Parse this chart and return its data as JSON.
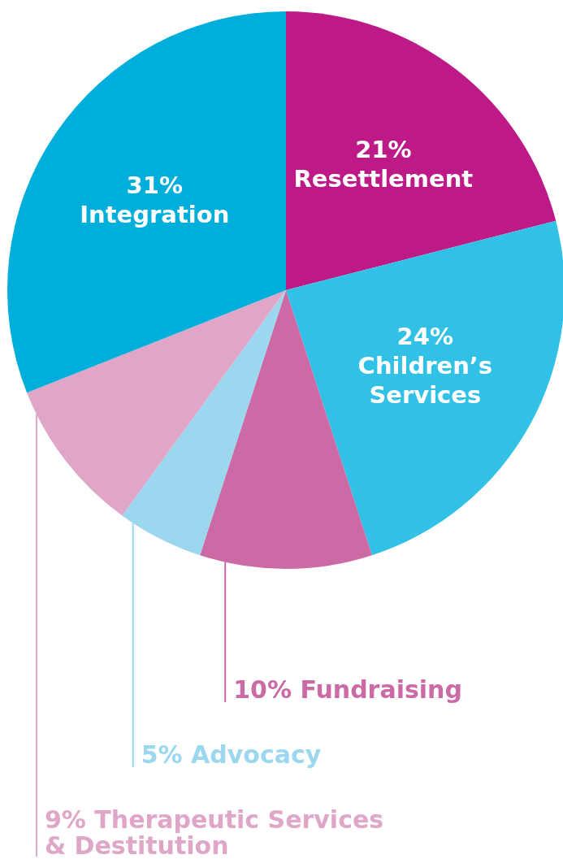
{
  "chart_data": {
    "type": "pie",
    "categories": [
      "Resettlement",
      "Children’s Services",
      "Fundraising",
      "Advocacy",
      "Therapeutic Services & Destitution",
      "Integration"
    ],
    "values": [
      21,
      24,
      10,
      5,
      9,
      31
    ],
    "value_labels": [
      "21%",
      "24%",
      "10%",
      "5%",
      "9%",
      "31%"
    ],
    "colors": [
      "#be1a87",
      "#31c1e6",
      "#cc6aa6",
      "#9bd8f0",
      "#e0a6c8",
      "#00aedb"
    ]
  }
}
